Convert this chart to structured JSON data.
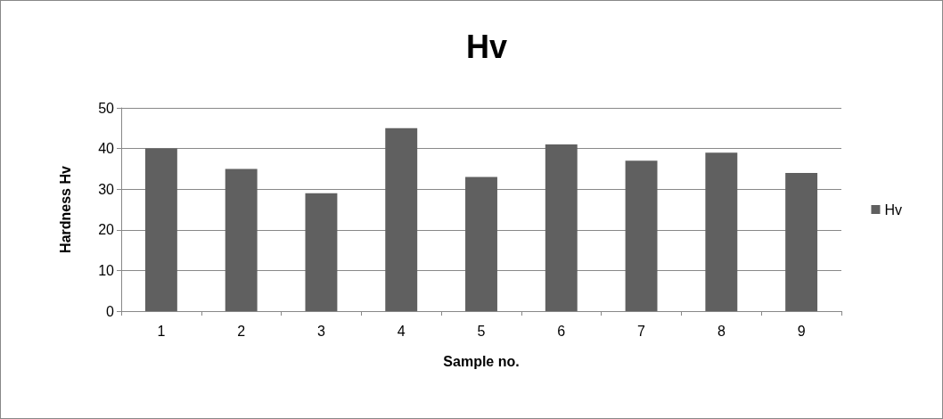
{
  "chart_data": {
    "type": "bar",
    "title": "Hv",
    "xlabel": "Sample no.",
    "ylabel": "Hardness Hv",
    "categories": [
      "1",
      "2",
      "3",
      "4",
      "5",
      "6",
      "7",
      "8",
      "9"
    ],
    "series": [
      {
        "name": "Hv",
        "color": "#606060",
        "values": [
          40,
          35,
          29,
          45,
          33,
          41,
          37,
          39,
          34
        ]
      }
    ],
    "ylim": [
      0,
      50
    ],
    "yticks": [
      0,
      10,
      20,
      30,
      40,
      50
    ],
    "grid": "y",
    "legend": "right"
  }
}
